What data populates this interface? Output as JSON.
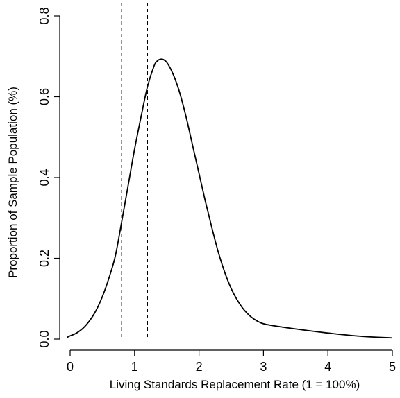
{
  "chart_data": {
    "type": "line",
    "title": "",
    "xlabel": "Living Standards Replacement Rate (1 = 100%)",
    "ylabel": "Proportion of Sample Population (%)",
    "xlim": [
      0,
      5
    ],
    "ylim": [
      0,
      0.8
    ],
    "x_ticks": [
      0,
      1,
      2,
      3,
      4,
      5
    ],
    "x_tick_labels": [
      "0",
      "1",
      "2",
      "3",
      "4",
      "5"
    ],
    "y_ticks": [
      0.0,
      0.2,
      0.4,
      0.6,
      0.8
    ],
    "y_tick_labels": [
      "0.0",
      "0.2",
      "0.4",
      "0.6",
      "0.8"
    ],
    "grid": false,
    "legend": "none",
    "series": [
      {
        "x": [
          -0.05,
          0.0,
          0.1,
          0.2,
          0.3,
          0.4,
          0.5,
          0.6,
          0.7,
          0.8,
          0.9,
          1.0,
          1.1,
          1.2,
          1.3,
          1.35,
          1.42,
          1.5,
          1.6,
          1.7,
          1.8,
          1.9,
          2.0,
          2.1,
          2.2,
          2.3,
          2.4,
          2.5,
          2.6,
          2.7,
          2.8,
          2.9,
          3.0,
          3.2,
          3.5,
          4.0,
          4.5,
          5.0
        ],
        "y": [
          0.004,
          0.008,
          0.015,
          0.027,
          0.045,
          0.07,
          0.105,
          0.15,
          0.205,
          0.29,
          0.38,
          0.47,
          0.55,
          0.625,
          0.675,
          0.688,
          0.693,
          0.685,
          0.655,
          0.61,
          0.55,
          0.48,
          0.41,
          0.34,
          0.275,
          0.215,
          0.165,
          0.125,
          0.095,
          0.072,
          0.056,
          0.045,
          0.038,
          0.032,
          0.025,
          0.015,
          0.007,
          0.003
        ]
      }
    ],
    "reference_lines": [
      {
        "orientation": "vertical",
        "x": 0.8,
        "style": "dashed"
      },
      {
        "orientation": "vertical",
        "x": 1.2,
        "style": "dashed"
      }
    ]
  }
}
